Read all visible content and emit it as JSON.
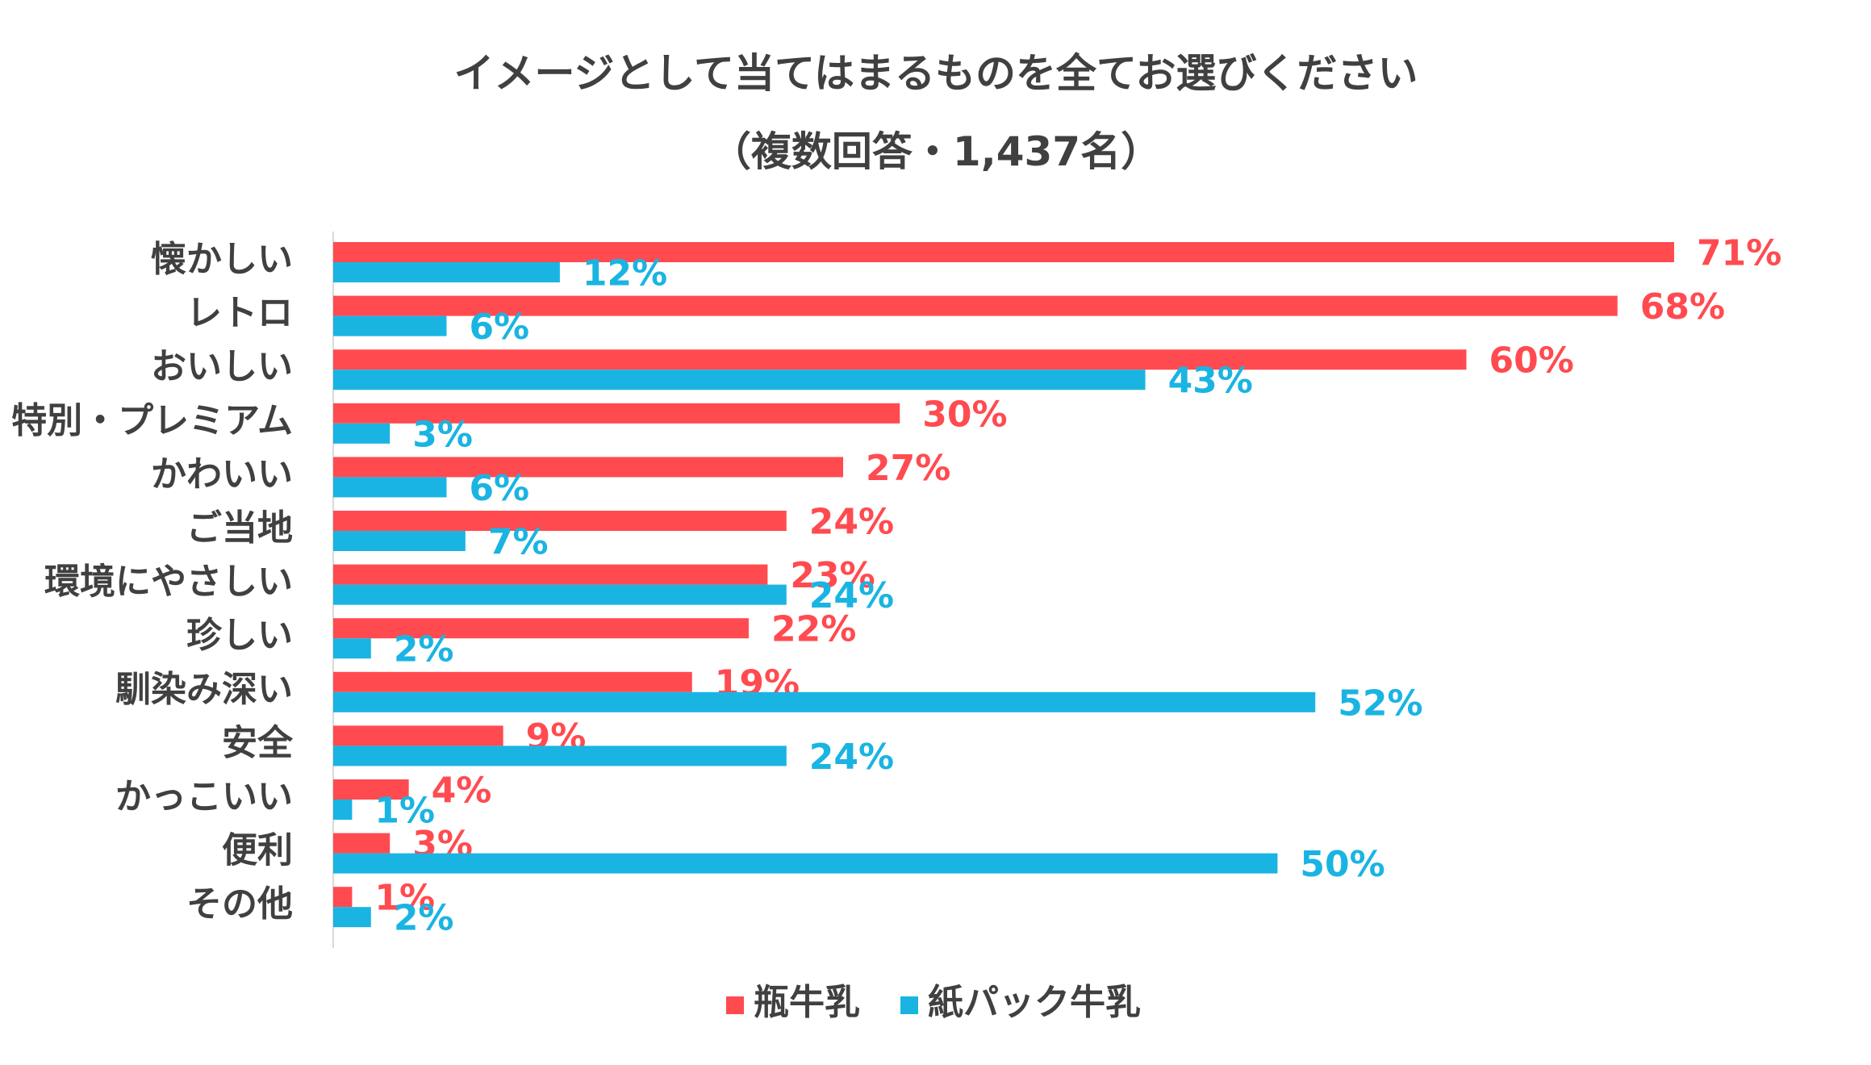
{
  "chart_data": {
    "type": "bar",
    "orientation": "horizontal",
    "title": "イメージとして当てはまるものを全てお選びください",
    "subtitle": "（複数回答・1,437名）",
    "categories": [
      "懐かしい",
      "レトロ",
      "おいしい",
      "特別・プレミアム",
      "かわいい",
      "ご当地",
      "環境にやさしい",
      "珍しい",
      "馴染み深い",
      "安全",
      "かっこいい",
      "便利",
      "その他"
    ],
    "series": [
      {
        "name": "瓶牛乳",
        "color": "#FF4B50",
        "values": [
          71,
          68,
          60,
          30,
          27,
          24,
          23,
          22,
          19,
          9,
          4,
          3,
          1
        ]
      },
      {
        "name": "紙パック牛乳",
        "color": "#1AB4E2",
        "values": [
          12,
          6,
          43,
          3,
          6,
          7,
          24,
          2,
          52,
          24,
          1,
          50,
          2
        ]
      }
    ],
    "value_suffix": "%",
    "xlim": [
      0,
      71
    ],
    "legend_position": "bottom-center"
  }
}
